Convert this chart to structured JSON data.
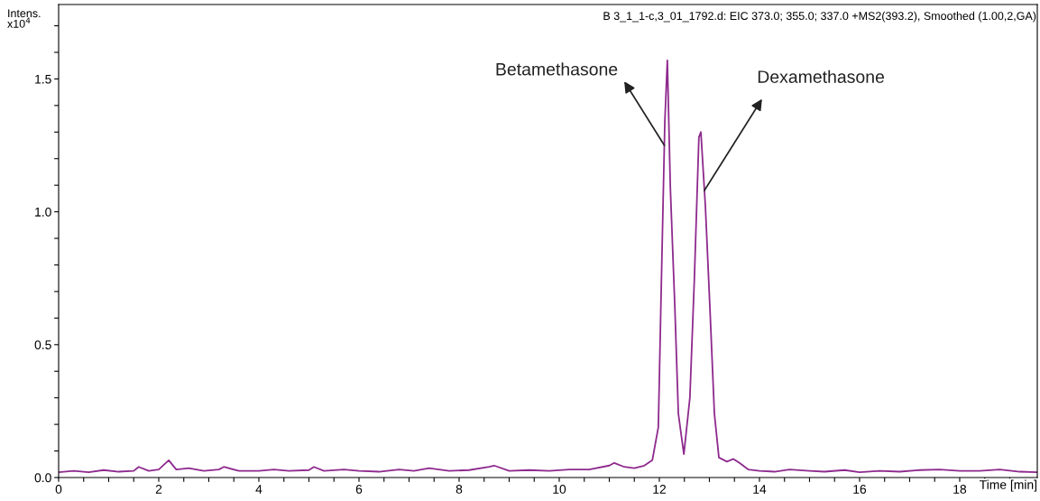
{
  "chart_data": {
    "type": "line",
    "xlabel": "Time [min]",
    "ylabel": "Intens.\nx10$^{4}$",
    "annotations": [
      "B 3_1_1-c,3_01_1792.d: EIC 373.0; 355.0; 337.0 +MS2(393.2), Smoothed (1.00,2,GA)",
      {
        "text": "Betamethasone",
        "x": 12.1,
        "y": 1.25
      },
      {
        "text": "Dexamethasone",
        "x": 12.9,
        "y": 1.08
      }
    ],
    "x": [
      0.0,
      0.3,
      0.6,
      0.9,
      1.2,
      1.5,
      1.6,
      1.8,
      2.0,
      2.2,
      2.35,
      2.6,
      2.9,
      3.2,
      3.3,
      3.6,
      4.0,
      4.3,
      4.6,
      5.0,
      5.1,
      5.3,
      5.7,
      6.0,
      6.4,
      6.8,
      7.1,
      7.4,
      7.8,
      8.2,
      8.6,
      8.7,
      9.0,
      9.4,
      9.8,
      10.2,
      10.6,
      11.0,
      11.1,
      11.3,
      11.5,
      11.7,
      11.86,
      11.98,
      12.04,
      12.11,
      12.16,
      12.22,
      12.31,
      12.38,
      12.49,
      12.61,
      12.7,
      12.79,
      12.83,
      12.92,
      13.01,
      13.1,
      13.19,
      13.35,
      13.48,
      13.6,
      13.78,
      14.0,
      14.3,
      14.6,
      15.0,
      15.3,
      15.7,
      16.0,
      16.4,
      16.8,
      17.2,
      17.6,
      18.0,
      18.4,
      18.8,
      19.2,
      19.55
    ],
    "series": [
      {
        "color": "#8e2a8e",
        "values": [
          0.02,
          0.025,
          0.02,
          0.028,
          0.022,
          0.025,
          0.04,
          0.025,
          0.03,
          0.065,
          0.03,
          0.035,
          0.025,
          0.03,
          0.04,
          0.025,
          0.025,
          0.03,
          0.025,
          0.028,
          0.04,
          0.025,
          0.03,
          0.025,
          0.022,
          0.03,
          0.025,
          0.035,
          0.025,
          0.028,
          0.04,
          0.045,
          0.025,
          0.028,
          0.025,
          0.03,
          0.03,
          0.045,
          0.055,
          0.04,
          0.035,
          0.045,
          0.065,
          0.19,
          0.73,
          1.34,
          1.57,
          1.09,
          0.64,
          0.24,
          0.088,
          0.3,
          0.75,
          1.28,
          1.3,
          1.02,
          0.64,
          0.24,
          0.075,
          0.06,
          0.07,
          0.055,
          0.03,
          0.025,
          0.022,
          0.03,
          0.025,
          0.022,
          0.028,
          0.02,
          0.025,
          0.022,
          0.028,
          0.03,
          0.025,
          0.025,
          0.03,
          0.022,
          0.02
        ]
      }
    ],
    "xlim": [
      0,
      19.55
    ],
    "ylim": [
      0,
      1.78
    ],
    "xticks": [
      0,
      {
        "value": 0.5,
        "label": null
      },
      {
        "value": 1,
        "label": null
      },
      {
        "value": 1.5,
        "label": null
      },
      2,
      {
        "value": 2.5,
        "label": null
      },
      {
        "value": 3,
        "label": null
      },
      {
        "value": 3.5,
        "label": null
      },
      4,
      {
        "value": 4.5,
        "label": null
      },
      {
        "value": 5,
        "label": null
      },
      {
        "value": 5.5,
        "label": null
      },
      6,
      {
        "value": 6.5,
        "label": null
      },
      {
        "value": 7,
        "label": null
      },
      {
        "value": 7.5,
        "label": null
      },
      8,
      {
        "value": 8.5,
        "label": null
      },
      {
        "value": 9,
        "label": null
      },
      {
        "value": 9.5,
        "label": null
      },
      10,
      {
        "value": 10.5,
        "label": null
      },
      {
        "value": 11,
        "label": null
      },
      {
        "value": 11.5,
        "label": null
      },
      12,
      {
        "value": 12.5,
        "label": null
      },
      {
        "value": 13,
        "label": null
      },
      {
        "value": 13.5,
        "label": null
      },
      14,
      {
        "value": 14.5,
        "label": null
      },
      {
        "value": 15,
        "label": null
      },
      {
        "value": 15.5,
        "label": null
      },
      16,
      {
        "value": 16.5,
        "label": null
      },
      {
        "value": 17,
        "label": null
      },
      {
        "value": 17.5,
        "label": null
      },
      18,
      {
        "value": 18.5,
        "label": null
      },
      {
        "value": 19,
        "label": null
      }
    ],
    "yticks": [
      {
        "value": 0,
        "label": "0.0"
      },
      {
        "value": 0.1,
        "label": null
      },
      {
        "value": 0.2,
        "label": null
      },
      {
        "value": 0.3,
        "label": null
      },
      {
        "value": 0.4,
        "label": null
      },
      0.5,
      {
        "value": 0.6,
        "label": null
      },
      {
        "value": 0.7,
        "label": null
      },
      {
        "value": 0.8,
        "label": null
      },
      {
        "value": 0.9,
        "label": null
      },
      {
        "value": 1,
        "label": "1.0"
      },
      {
        "value": 1.1,
        "label": null
      },
      {
        "value": 1.2,
        "label": null
      },
      {
        "value": 1.3,
        "label": null
      },
      {
        "value": 1.4,
        "label": null
      },
      1.5,
      {
        "value": 1.6,
        "label": null
      },
      {
        "value": 1.7,
        "label": null
      }
    ],
    "grid": false,
    "legend": false,
    "marker": "none",
    "line_style": "solid"
  }
}
